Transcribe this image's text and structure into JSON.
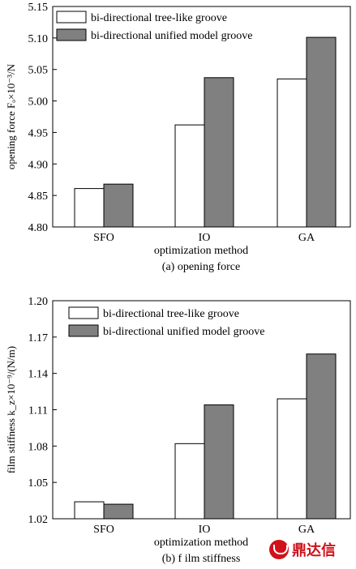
{
  "chart_data": [
    {
      "id": "a",
      "type": "bar",
      "categories": [
        "SFO",
        "IO",
        "GA"
      ],
      "series": [
        {
          "name": "bi-directional tree-like groove",
          "values": [
            4.861,
            4.962,
            5.035
          ],
          "color": "#ffffff"
        },
        {
          "name": "bi-directional unified model groove",
          "values": [
            4.868,
            5.037,
            5.101
          ],
          "color": "#808080"
        }
      ],
      "xlabel": "optimization method",
      "ylabel": "opening force Fₒ×10⁻³/N",
      "caption": "(a) opening force",
      "ylim": [
        4.8,
        5.15
      ],
      "yticks": [
        "4.80",
        "4.85",
        "4.90",
        "4.95",
        "5.00",
        "5.05",
        "5.10",
        "5.15"
      ],
      "grid": false,
      "legend": "top-left"
    },
    {
      "id": "b",
      "type": "bar",
      "categories": [
        "SFO",
        "IO",
        "GA"
      ],
      "series": [
        {
          "name": "bi-directional tree-like groove",
          "values": [
            1.034,
            1.082,
            1.119
          ],
          "color": "#ffffff"
        },
        {
          "name": "bi-directional unified model groove",
          "values": [
            1.032,
            1.114,
            1.156
          ],
          "color": "#808080"
        }
      ],
      "xlabel": "optimization method",
      "ylabel": "film stiffness k_z×10⁻⁹/(N/m)",
      "caption": "(b) f ilm stiffness",
      "ylim": [
        1.02,
        1.2
      ],
      "yticks": [
        "1.02",
        "1.05",
        "1.08",
        "1.11",
        "1.14",
        "1.17",
        "1.20"
      ],
      "grid": false,
      "legend": "top-left"
    }
  ],
  "logo": {
    "text": "鼎达信",
    "icon": "ring-logo-icon",
    "color": "#d0121b"
  }
}
